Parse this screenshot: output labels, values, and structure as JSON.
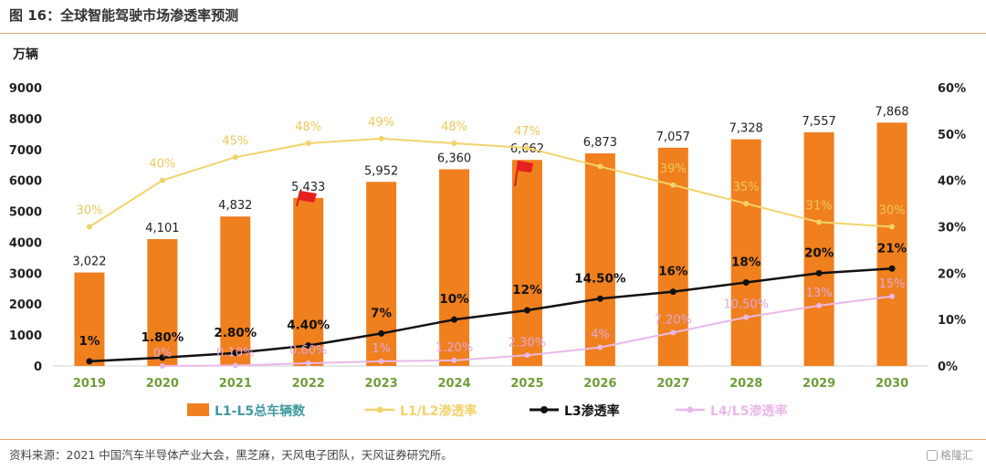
{
  "figure": {
    "title": "图 16：全球智能驾驶市场渗透率预测",
    "source": "资料来源：2021 中国汽车半导体产业大会，黑芝麻，天风电子团队，天风证券研究所。",
    "watermark": "格隆汇"
  },
  "chart_data": {
    "type": "bar",
    "title": "",
    "ylabel_left": "万辆",
    "ylim_left": [
      0,
      9000
    ],
    "yticks_left": [
      "0",
      "1000",
      "2000",
      "3000",
      "4000",
      "5000",
      "6000",
      "7000",
      "8000",
      "9000"
    ],
    "ylim_right": [
      0,
      60
    ],
    "yticks_right": [
      "0%",
      "10%",
      "20%",
      "30%",
      "40%",
      "50%",
      "60%"
    ],
    "categories": [
      "2019",
      "2020",
      "2021",
      "2022",
      "2023",
      "2024",
      "2025",
      "2026",
      "2027",
      "2028",
      "2029",
      "2030"
    ],
    "legend_position": "bottom",
    "grid": false,
    "colors": {
      "bar": "#f07f1e",
      "l12": "#f2d36a",
      "l3": "#111111",
      "l45": "#eab8e8",
      "category_label": "#6f9d3a"
    },
    "series": [
      {
        "name": "L1-L5总车辆数",
        "kind": "bar",
        "axis": "left",
        "values": [
          3022,
          4101,
          4832,
          5433,
          5952,
          6360,
          6662,
          6873,
          7057,
          7328,
          7557,
          7868
        ],
        "labels": [
          "3,022",
          "4,101",
          "4,832",
          "5,433",
          "5,952",
          "6,360",
          "6,662",
          "6,873",
          "7,057",
          "7,328",
          "7,557",
          "7,868"
        ]
      },
      {
        "name": "L1/L2渗透率",
        "kind": "line",
        "axis": "right",
        "values": [
          30,
          40,
          45,
          48,
          49,
          48,
          47,
          43,
          39,
          35,
          31,
          30
        ],
        "labels": [
          "30%",
          "40%",
          "45%",
          "48%",
          "49%",
          "48%",
          "47%",
          "",
          "39%",
          "35%",
          "31%",
          "30%"
        ]
      },
      {
        "name": "L3渗透率",
        "kind": "line",
        "axis": "right",
        "values": [
          1,
          1.8,
          2.8,
          4.4,
          7,
          10,
          12,
          14.5,
          16,
          18,
          20,
          21
        ],
        "labels": [
          "1%",
          "1.80%",
          "2.80%",
          "4.40%",
          "7%",
          "10%",
          "12%",
          "14.50%",
          "16%",
          "18%",
          "20%",
          "21%"
        ]
      },
      {
        "name": "L4/L5渗透率",
        "kind": "line",
        "axis": "right",
        "values": [
          null,
          0,
          0.1,
          0.6,
          1,
          1.2,
          2.3,
          4,
          7.2,
          10.5,
          13,
          15
        ],
        "labels": [
          "",
          "0%",
          "0.10%",
          "0.60%",
          "1%",
          "1.20%",
          "2.30%",
          "4%",
          "7.20%",
          "10.50%",
          "13%",
          "15%"
        ]
      }
    ]
  }
}
